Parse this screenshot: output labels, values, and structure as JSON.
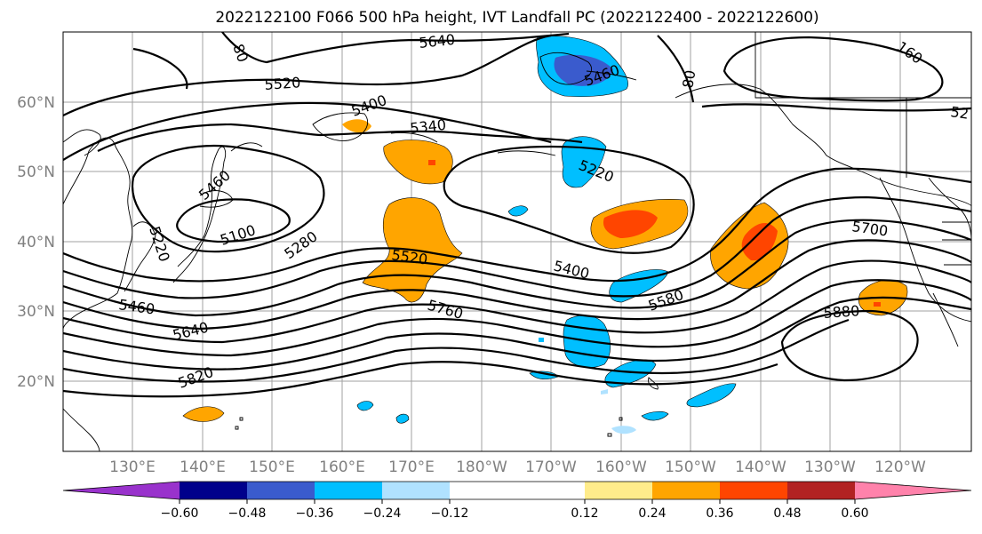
{
  "title": "2022122100 F066 500 hPa height, IVT Landfall PC (2022122400 - 2022122600)",
  "map": {
    "lon_labels": [
      "130°E",
      "140°E",
      "150°E",
      "160°E",
      "170°E",
      "180°W",
      "170°W",
      "160°W",
      "150°W",
      "140°W",
      "130°W",
      "120°W"
    ],
    "lat_labels": [
      "60°N",
      "50°N",
      "40°N",
      "30°N",
      "20°N"
    ],
    "contour_labels": [
      "5640",
      "5520",
      "5400",
      "5340",
      "5460",
      "5220",
      "5460",
      "5100",
      "5220",
      "5280",
      "5520",
      "5400",
      "5460",
      "5580",
      "5640",
      "5760",
      "5820",
      "5700",
      "5880",
      "80",
      "80",
      "160",
      "52"
    ]
  },
  "colorbar": {
    "colors": [
      "#9932cc",
      "#00008b",
      "#3a5bcd",
      "#00bfff",
      "#b0e2ff",
      "#ffffff",
      "#ffffff",
      "#ffec8b",
      "#ffa500",
      "#ff4500",
      "#b22222",
      "#ff82ab"
    ],
    "ticks": [
      "−0.60",
      "−0.48",
      "−0.36",
      "−0.24",
      "−0.12",
      "0.12",
      "0.24",
      "0.36",
      "0.48",
      "0.60"
    ]
  }
}
